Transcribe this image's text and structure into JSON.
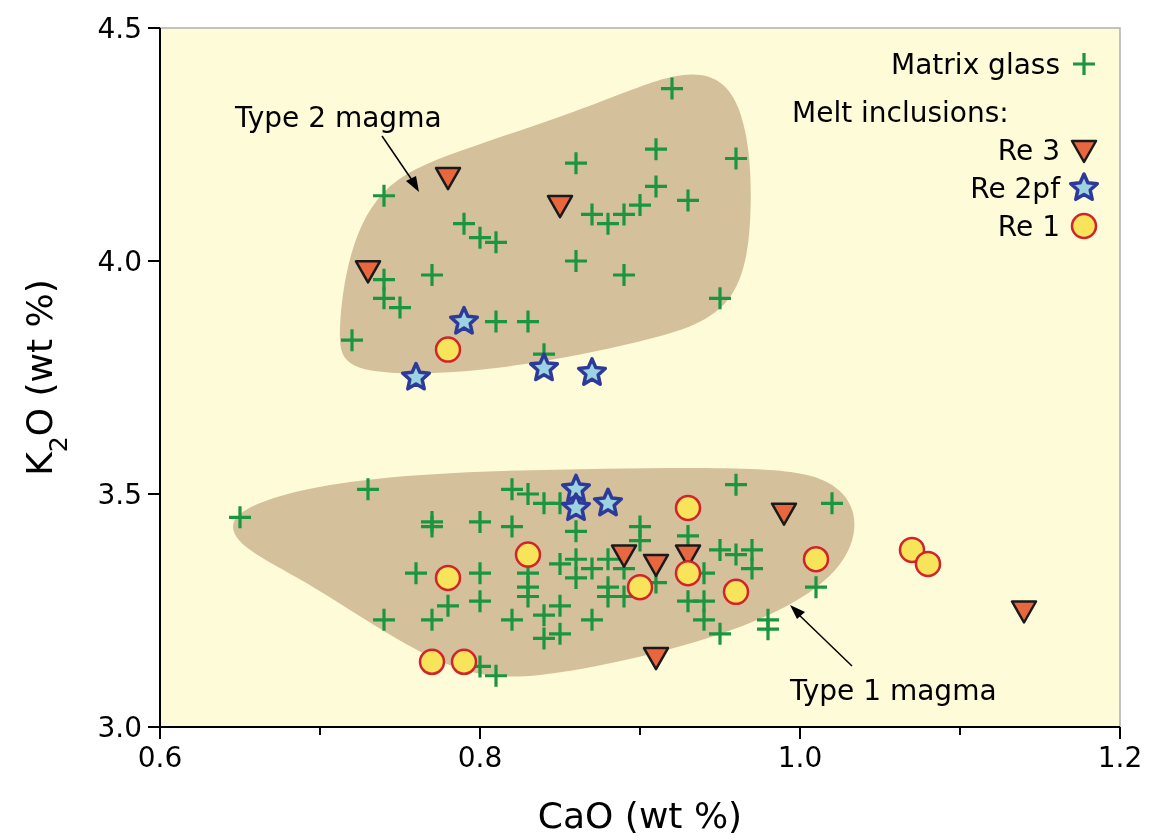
{
  "chart_data": {
    "type": "scatter",
    "xlabel": "CaO (wt %)",
    "ylabel": "K$_{2}$O (wt %)",
    "xlim": [
      0.6,
      1.2
    ],
    "ylim": [
      3.0,
      4.5
    ],
    "xticks": [
      {
        "value": 0.6,
        "label": "0.6"
      },
      {
        "value": 0.7,
        "label": null
      },
      {
        "value": 0.8,
        "label": "0.8"
      },
      {
        "value": 0.9,
        "label": null
      },
      {
        "value": 1.0,
        "label": "1.0"
      },
      {
        "value": 1.1,
        "label": null
      },
      {
        "value": 1.2,
        "label": "1.2"
      }
    ],
    "yticks": [
      {
        "value": 3.0,
        "label": "3.0"
      },
      {
        "value": 3.5,
        "label": "3.5"
      },
      {
        "value": 4.0,
        "label": "4.0"
      },
      {
        "value": 4.5,
        "label": "4.5"
      }
    ],
    "grid": false,
    "legend": "top right",
    "legend_title": "Melt inclusions:",
    "annotations": [
      "Type 2 magma",
      "Type 1 magma"
    ],
    "series": [
      {
        "name": "Matrix glass",
        "color": "#1a9641",
        "marker": "cross",
        "x": [
          0.92,
          0.86,
          0.91,
          0.96,
          0.74,
          0.93,
          0.87,
          0.88,
          0.89,
          0.9,
          0.91,
          0.79,
          0.8,
          0.81,
          0.86,
          0.89,
          0.77,
          0.74,
          0.74,
          0.75,
          0.95,
          0.72,
          0.81,
          0.83,
          0.84,
          0.65,
          0.73,
          0.77,
          0.77,
          0.8,
          0.82,
          0.82,
          0.83,
          0.84,
          0.85,
          0.76,
          0.8,
          0.8,
          0.78,
          0.74,
          0.77,
          0.8,
          0.81,
          0.82,
          0.84,
          0.84,
          0.85,
          0.85,
          0.83,
          0.83,
          0.83,
          0.85,
          0.86,
          0.86,
          0.86,
          0.87,
          0.87,
          0.88,
          0.88,
          0.88,
          0.89,
          0.89,
          0.9,
          0.9,
          0.91,
          0.93,
          0.93,
          0.94,
          0.94,
          0.94,
          0.95,
          0.95,
          0.96,
          0.96,
          0.97,
          0.97,
          0.98,
          0.98,
          1.01,
          1.02
        ],
        "values": [
          4.37,
          4.21,
          4.24,
          4.22,
          4.14,
          4.13,
          4.1,
          4.08,
          4.1,
          4.12,
          4.16,
          4.08,
          4.05,
          4.04,
          4.0,
          3.97,
          3.97,
          3.96,
          3.92,
          3.9,
          3.92,
          3.83,
          3.87,
          3.87,
          3.8,
          3.45,
          3.51,
          3.44,
          3.43,
          3.44,
          3.43,
          3.51,
          3.5,
          3.48,
          3.48,
          3.33,
          3.33,
          3.27,
          3.26,
          3.23,
          3.23,
          3.13,
          3.11,
          3.23,
          3.24,
          3.19,
          3.2,
          3.26,
          3.33,
          3.3,
          3.28,
          3.35,
          3.42,
          3.36,
          3.32,
          3.34,
          3.23,
          3.36,
          3.3,
          3.28,
          3.34,
          3.28,
          3.43,
          3.4,
          3.31,
          3.41,
          3.27,
          3.33,
          3.27,
          3.23,
          3.38,
          3.2,
          3.37,
          3.52,
          3.38,
          3.34,
          3.23,
          3.21,
          3.3,
          3.48
        ]
      },
      {
        "name": "Re 3",
        "color": "#e8673f",
        "marker": "triangle",
        "x": [
          0.78,
          0.85,
          0.73,
          0.89,
          0.91,
          0.93,
          0.99,
          0.91,
          1.14
        ],
        "values": [
          4.18,
          4.12,
          3.98,
          3.37,
          3.35,
          3.37,
          3.46,
          3.15,
          3.25
        ]
      },
      {
        "name": "Re 2pf",
        "color": "#9dd3e0",
        "marker": "star",
        "x": [
          0.76,
          0.79,
          0.84,
          0.87,
          0.86,
          0.86,
          0.88
        ],
        "values": [
          3.75,
          3.87,
          3.77,
          3.76,
          3.51,
          3.47,
          3.48
        ]
      },
      {
        "name": "Re 1",
        "color": "#f7e45a",
        "marker": "circle",
        "x": [
          0.78,
          0.78,
          0.83,
          0.77,
          0.79,
          0.9,
          0.93,
          0.93,
          0.96,
          1.01,
          1.07,
          1.08
        ],
        "values": [
          3.81,
          3.32,
          3.37,
          3.14,
          3.14,
          3.3,
          3.47,
          3.33,
          3.29,
          3.36,
          3.38,
          3.35
        ]
      }
    ]
  }
}
